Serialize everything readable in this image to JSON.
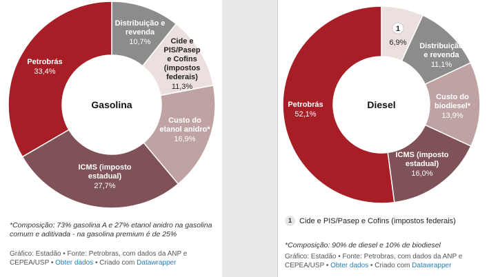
{
  "chart_data": [
    {
      "type": "pie",
      "center_label": "Gasolina",
      "slices": [
        {
          "label": "Distribuição e revenda",
          "value": 10.7,
          "value_text": "10,7%",
          "color": "#8c8c8c",
          "text_color": "#ffffff"
        },
        {
          "label": "Cide e PIS/Pasep e Cofins (impostos federais)",
          "value": 11.3,
          "value_text": "11,3%",
          "color": "#ece0df",
          "text_color": "#222222"
        },
        {
          "label": "Custo do etanol anidro*",
          "value": 16.9,
          "value_text": "16,9%",
          "color": "#bfa3a3",
          "text_color": "#ffffff"
        },
        {
          "label": "ICMS (imposto estadual)",
          "value": 27.7,
          "value_text": "27,7%",
          "color": "#7e5256",
          "text_color": "#ffffff"
        },
        {
          "label": "Petrobrás",
          "value": 33.4,
          "value_text": "33,4%",
          "color": "#a71e26",
          "text_color": "#ffffff"
        }
      ],
      "note": "*Composição: 73% gasolina A e 27% etanol anidro na gasolina comum e aditivada - na gasolina premium é de 25%",
      "credit_prefix": "Gráfico: Estadão • Fonte: Petrobras, com dados da ANP e CEPEA/USP •",
      "credit_link1": "Obter dados",
      "credit_mid": "• Criado com",
      "credit_link2": "Datawrapper"
    },
    {
      "type": "pie",
      "center_label": "Diesel",
      "slices": [
        {
          "label": "1",
          "value": 6.9,
          "value_text": "6,9%",
          "color": "#ece0df",
          "text_color": "#222222"
        },
        {
          "label": "Distribuição e revenda",
          "value": 11.1,
          "value_text": "11,1%",
          "color": "#8c8c8c",
          "text_color": "#ffffff"
        },
        {
          "label": "Custo do biodiesel*",
          "value": 13.9,
          "value_text": "13,9%",
          "color": "#bfa3a3",
          "text_color": "#ffffff"
        },
        {
          "label": "ICMS (imposto estadual)",
          "value": 16.0,
          "value_text": "16,0%",
          "color": "#7e5256",
          "text_color": "#ffffff"
        },
        {
          "label": "Petrobrás",
          "value": 52.1,
          "value_text": "52,1%",
          "color": "#a71e26",
          "text_color": "#ffffff"
        }
      ],
      "legend": {
        "badge": "1",
        "text": "Cide e PIS/Pasep e Cofins (impostos federais)"
      },
      "note": "*Composição: 90% de diesel e 10% de biodiesel",
      "credit_prefix": "Gráfico: Estadão • Fonte: Petrobras, com dados da ANP e CEPEA/USP •",
      "credit_link1": "Obter dados",
      "credit_mid": "• Criado com",
      "credit_link2": "Datawrapper"
    }
  ]
}
